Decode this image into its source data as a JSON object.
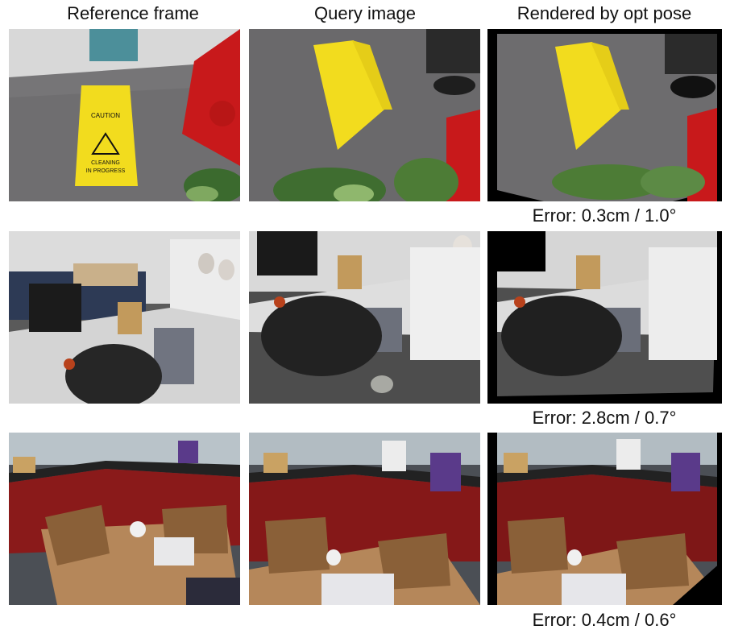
{
  "headers": {
    "reference": "Reference frame",
    "query": "Query image",
    "rendered": "Rendered by opt pose"
  },
  "rows": [
    {
      "error": "Error: 0.3cm / 1.0°"
    },
    {
      "error": "Error: 2.8cm / 0.7°"
    },
    {
      "error": "Error: 0.4cm / 0.6°"
    }
  ],
  "sign_text": {
    "line1": "CAUTION",
    "line2": "CLEANING",
    "line3": "IN PROGRESS"
  },
  "colors": {
    "sign_yellow": "#f2dc1e",
    "carpet": "#6f6e70",
    "cabinet_red": "#8a1a1a",
    "table_wood": "#b5875a"
  }
}
